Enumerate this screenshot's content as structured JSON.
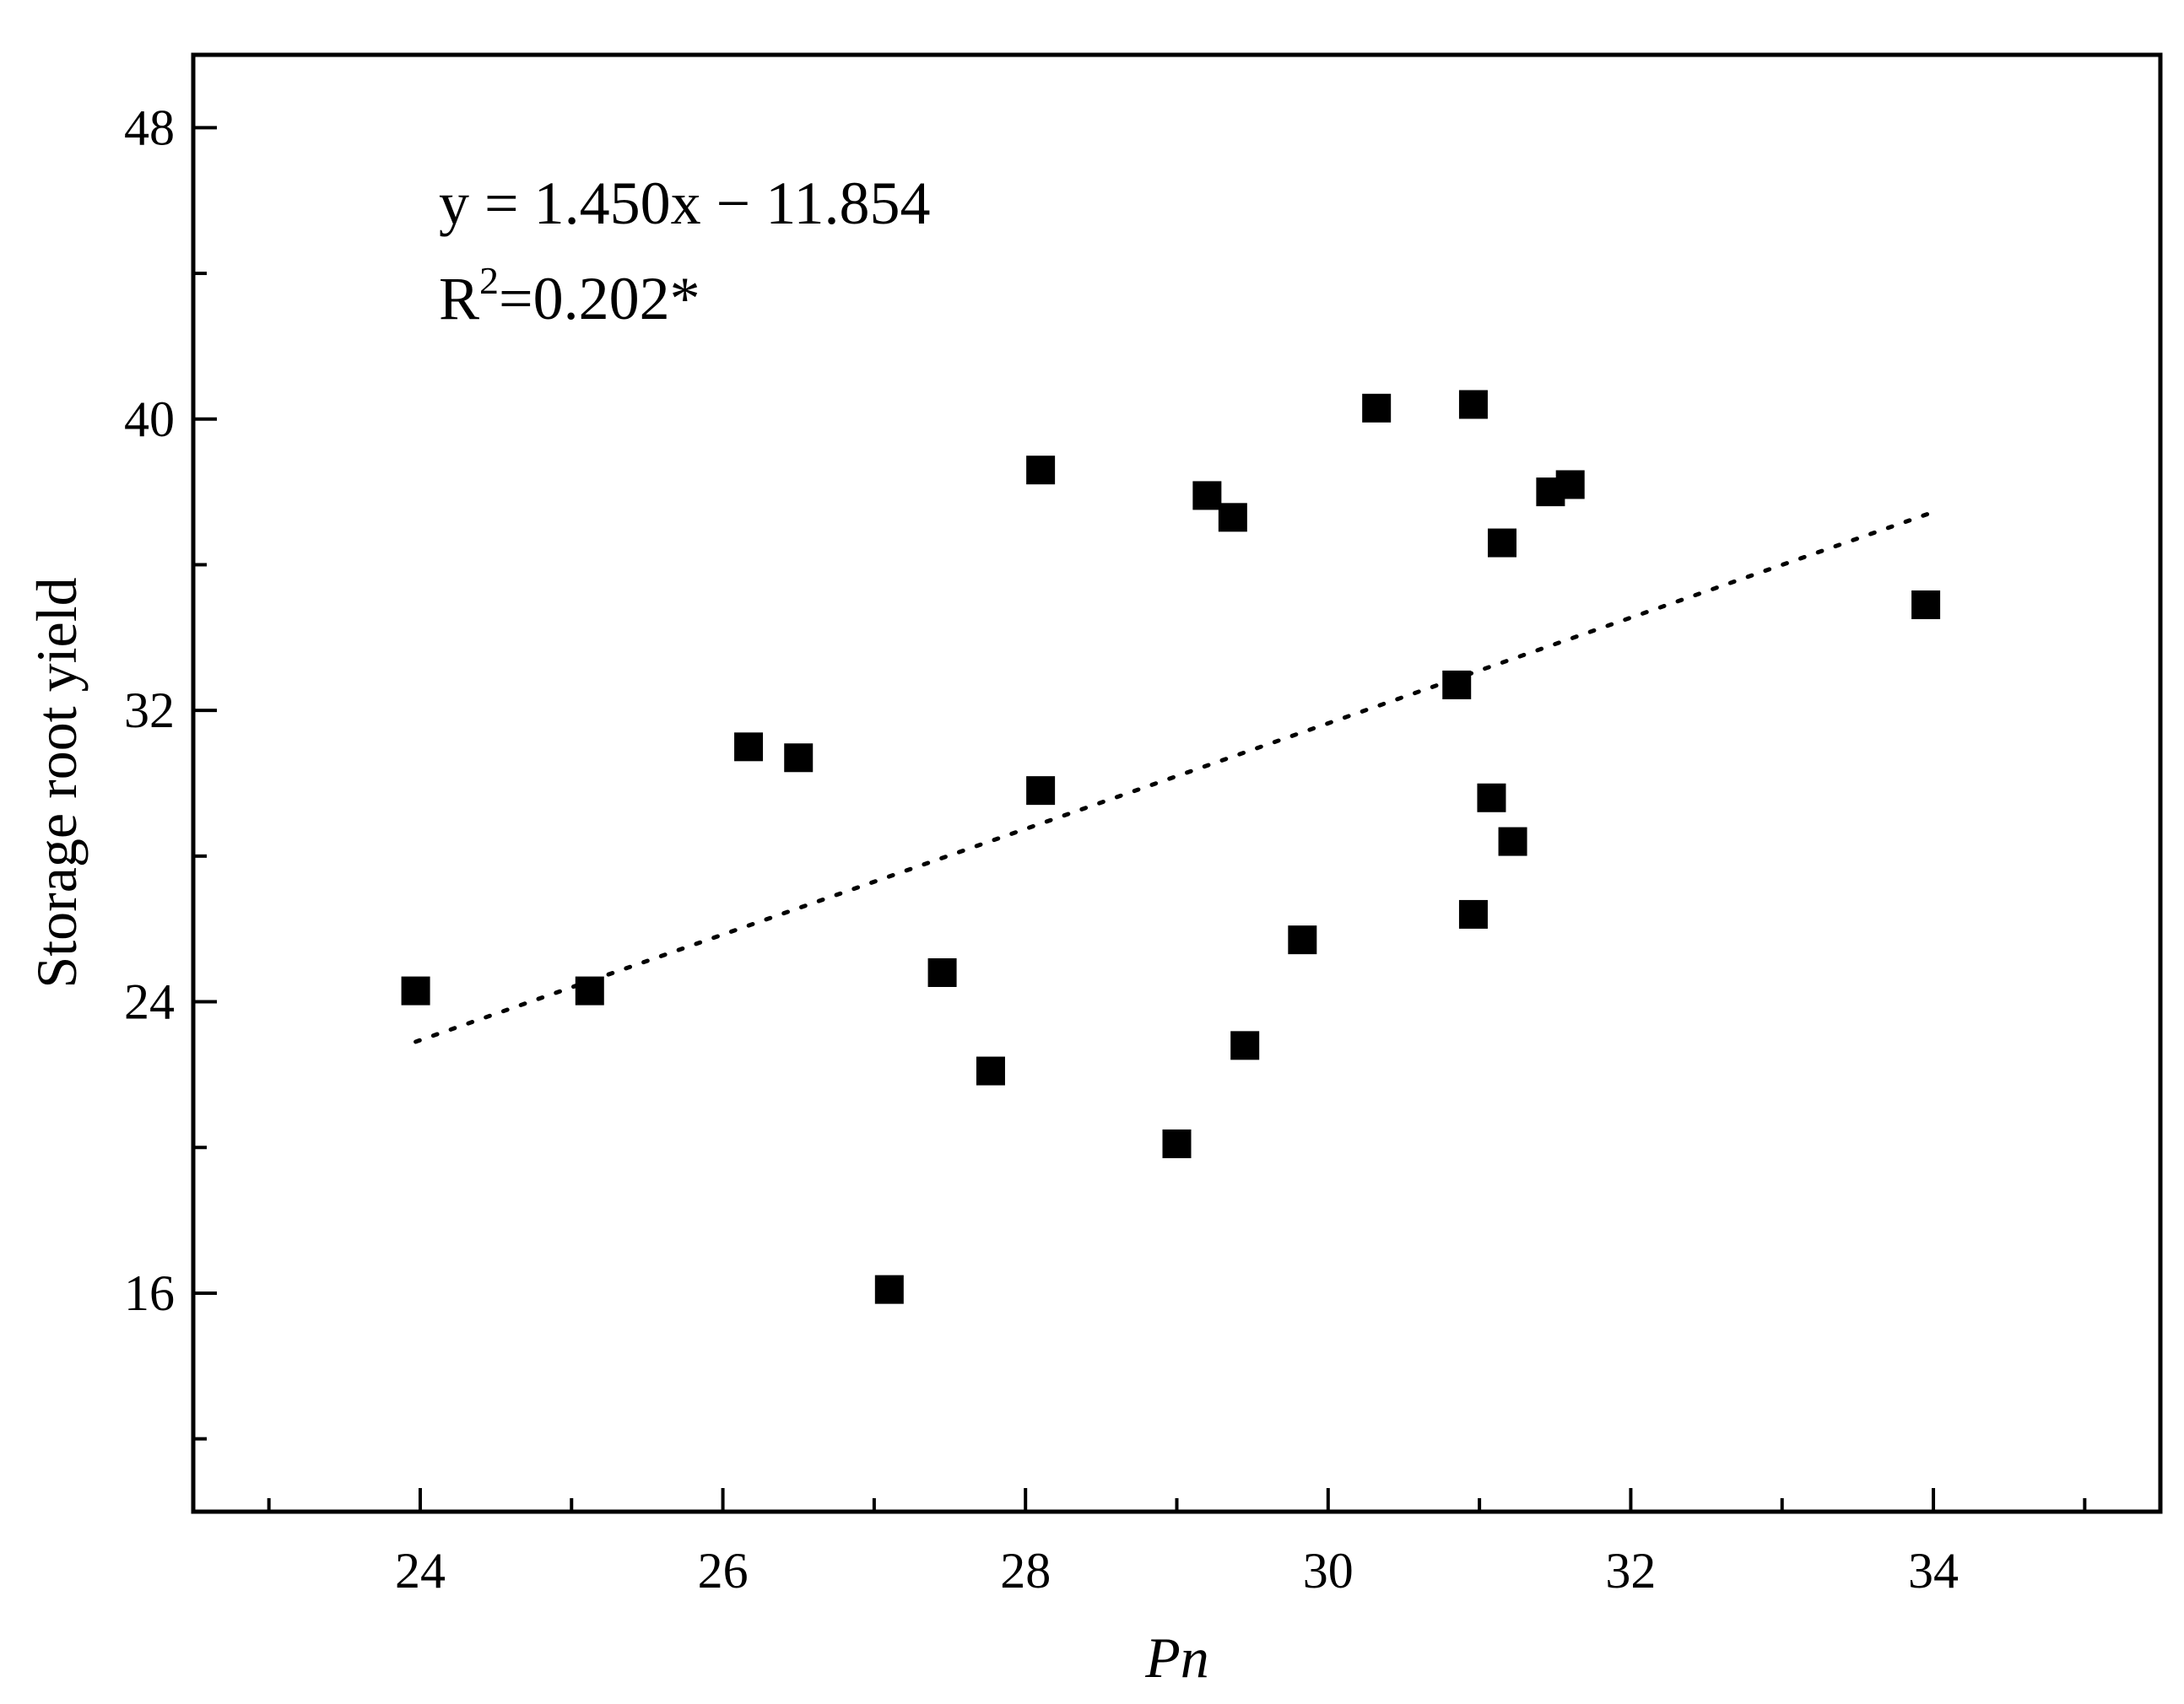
{
  "chart_data": {
    "type": "scatter",
    "title": "",
    "xlabel": "Pn",
    "ylabel": "Storage root yield",
    "xlim": [
      22.5,
      35.5
    ],
    "ylim": [
      10,
      50
    ],
    "x_ticks": [
      24,
      26,
      28,
      30,
      32,
      34
    ],
    "y_ticks": [
      16,
      24,
      32,
      40,
      48
    ],
    "x_tick_labels": [
      "24",
      "26",
      "28",
      "30",
      "32",
      "34"
    ],
    "y_tick_labels": [
      "16",
      "24",
      "32",
      "40",
      "48"
    ],
    "x_minor_ticks": [
      23,
      25,
      27,
      29,
      31,
      33,
      35
    ],
    "y_minor_ticks": [
      12,
      20,
      28,
      36,
      44
    ],
    "grid": false,
    "marker": "square",
    "marker_color": "#000000",
    "points": [
      {
        "x": 23.97,
        "y": 24.3
      },
      {
        "x": 25.12,
        "y": 24.3
      },
      {
        "x": 26.17,
        "y": 31.0
      },
      {
        "x": 26.5,
        "y": 30.7
      },
      {
        "x": 27.1,
        "y": 16.1
      },
      {
        "x": 27.45,
        "y": 24.8
      },
      {
        "x": 27.77,
        "y": 22.1
      },
      {
        "x": 28.1,
        "y": 38.6
      },
      {
        "x": 28.1,
        "y": 29.8
      },
      {
        "x": 29.0,
        "y": 20.1
      },
      {
        "x": 29.2,
        "y": 37.9
      },
      {
        "x": 29.37,
        "y": 37.3
      },
      {
        "x": 29.45,
        "y": 22.8
      },
      {
        "x": 29.83,
        "y": 25.7
      },
      {
        "x": 30.32,
        "y": 40.3
      },
      {
        "x": 30.85,
        "y": 32.7
      },
      {
        "x": 30.96,
        "y": 40.4
      },
      {
        "x": 30.96,
        "y": 26.4
      },
      {
        "x": 31.08,
        "y": 29.6
      },
      {
        "x": 31.15,
        "y": 36.6
      },
      {
        "x": 31.22,
        "y": 28.4
      },
      {
        "x": 31.47,
        "y": 38.0
      },
      {
        "x": 31.6,
        "y": 38.2
      },
      {
        "x": 33.95,
        "y": 34.9
      }
    ],
    "trendline": {
      "style": "dotted",
      "x_start": 23.97,
      "x_end": 34.0,
      "slope": 1.45,
      "intercept": -11.854
    },
    "annotations": {
      "equation": "y = 1.450x − 11.854",
      "r2_prefix": "R",
      "r2_sup": "2",
      "r2_value": "=0.202*"
    }
  }
}
